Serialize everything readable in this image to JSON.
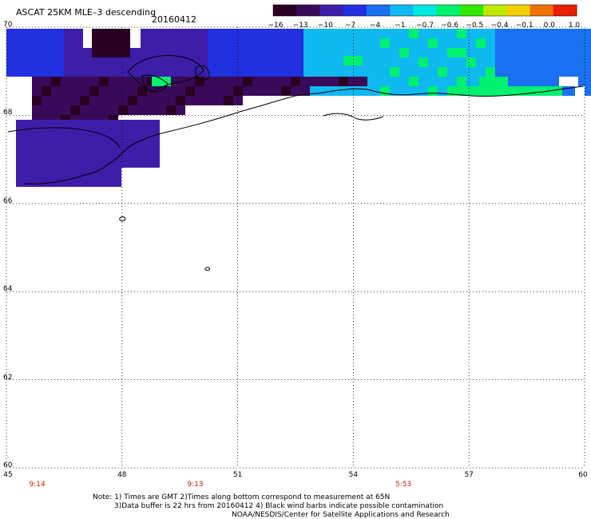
{
  "header": {
    "title": "ASCAT 25KM MLE–3 descending",
    "date": "20160412"
  },
  "colorbar": {
    "labels": [
      "−16",
      "−13",
      "−10",
      "−7",
      "−4",
      "−1",
      "−0.7",
      "−0.6",
      "−0.5",
      "−0.4",
      "−0.1",
      "0.0",
      "1.0"
    ],
    "colors": [
      "#2a0022",
      "#3a0a5a",
      "#3c1ea8",
      "#2230e0",
      "#1a70f0",
      "#10b8f0",
      "#00e8e0",
      "#00f070",
      "#30e800",
      "#c0e800",
      "#f0d000",
      "#f07000",
      "#e82000"
    ]
  },
  "map": {
    "lat_labels": [
      "70",
      "68",
      "66",
      "64",
      "62",
      "60"
    ],
    "lon_labels": [
      "45",
      "48",
      "51",
      "54",
      "57",
      "60"
    ],
    "time_labels": [
      {
        "lon": 45.8,
        "text": "9:14"
      },
      {
        "lon": 49.9,
        "text": "9:13"
      },
      {
        "lon": 55.3,
        "text": "5:53"
      }
    ]
  },
  "notes": {
    "line1": "Note: 1) Times are GMT 2)Times along bottom correspond to measurement at 65N",
    "line2": "3)Data buffer is 22 hrs from 20160412 4) Black wind barbs indicate possible contamination",
    "line3": "NOAA/NESDIS/Center for Satellite Applications and Research"
  }
}
